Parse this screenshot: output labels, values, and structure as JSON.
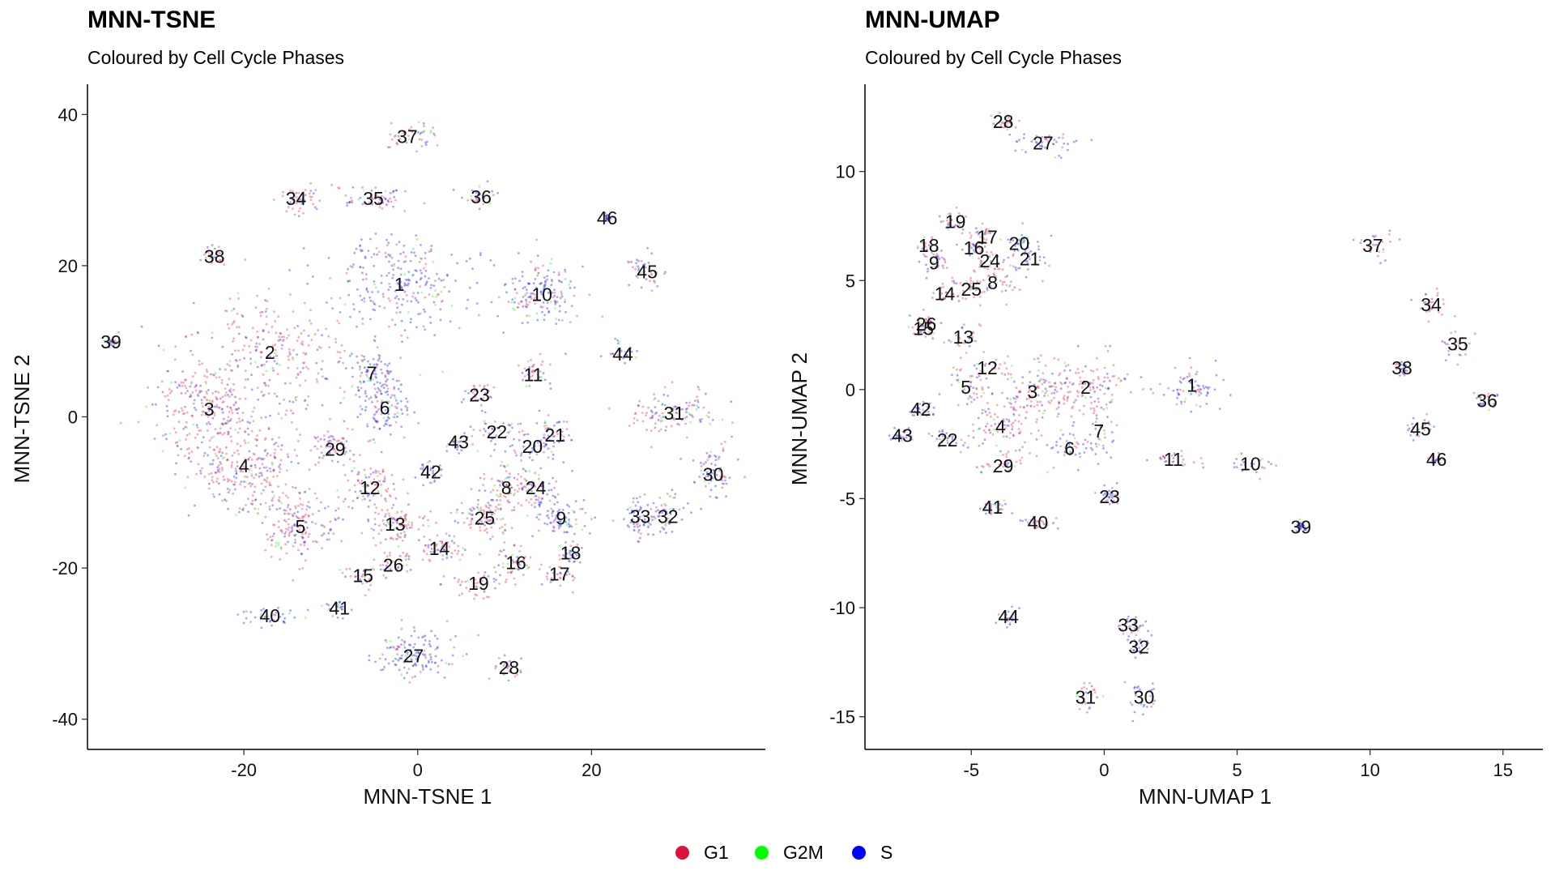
{
  "legend": {
    "items": [
      {
        "label": "G1",
        "color": "#dc143c"
      },
      {
        "label": "G2M",
        "color": "#00ff00"
      },
      {
        "label": "S",
        "color": "#0000ff"
      }
    ]
  },
  "colors": {
    "G1": "#dc143c",
    "G2M": "#00ff00",
    "S": "#0000ff"
  },
  "chart_data": [
    {
      "type": "scatter",
      "title": "MNN-TSNE",
      "subtitle": "Coloured by Cell Cycle Phases",
      "xlabel": "MNN-TSNE 1",
      "ylabel": "MNN-TSNE 2",
      "xlim": [
        -38,
        40
      ],
      "ylim": [
        -44,
        44
      ],
      "xticks": [
        -20,
        0,
        20
      ],
      "yticks": [
        -40,
        -20,
        0,
        20,
        40
      ],
      "grid": false,
      "legend_position": "bottom",
      "series": [
        {
          "name": "G1"
        },
        {
          "name": "G2M"
        },
        {
          "name": "S"
        }
      ],
      "cluster_labels": [
        {
          "label": "1",
          "x": -2.1,
          "y": 17.5,
          "phase": "S",
          "sx": 7,
          "sy": 6
        },
        {
          "label": "2",
          "x": -17.0,
          "y": 8.5,
          "phase": "G1",
          "sx": 9,
          "sy": 8
        },
        {
          "label": "3",
          "x": -24.0,
          "y": 1.0,
          "phase": "G1",
          "sx": 6,
          "sy": 7
        },
        {
          "label": "4",
          "x": -20.0,
          "y": -6.5,
          "phase": "G1",
          "sx": 6,
          "sy": 6
        },
        {
          "label": "5",
          "x": -13.5,
          "y": -14.5,
          "phase": "G1",
          "sx": 4,
          "sy": 4
        },
        {
          "label": "6",
          "x": -3.8,
          "y": 1.2,
          "phase": "S",
          "sx": 3,
          "sy": 4
        },
        {
          "label": "7",
          "x": -5.3,
          "y": 5.8,
          "phase": "S",
          "sx": 2.5,
          "sy": 3
        },
        {
          "label": "8",
          "x": 10.2,
          "y": -9.4,
          "phase": "G1",
          "sx": 3,
          "sy": 3
        },
        {
          "label": "9",
          "x": 16.5,
          "y": -13.4,
          "phase": "S",
          "sx": 3,
          "sy": 3
        },
        {
          "label": "10",
          "x": 14.3,
          "y": 16.2,
          "phase": "S",
          "sx": 4,
          "sy": 4
        },
        {
          "label": "11",
          "x": 13.3,
          "y": 5.6,
          "phase": "G1",
          "sx": 1.5,
          "sy": 2.5
        },
        {
          "label": "12",
          "x": -5.5,
          "y": -9.4,
          "phase": "G1",
          "sx": 3,
          "sy": 3
        },
        {
          "label": "13",
          "x": -2.6,
          "y": -14.2,
          "phase": "G1",
          "sx": 3,
          "sy": 3
        },
        {
          "label": "14",
          "x": 2.5,
          "y": -17.4,
          "phase": "G1",
          "sx": 3,
          "sy": 2
        },
        {
          "label": "15",
          "x": -6.3,
          "y": -21.0,
          "phase": "G1",
          "sx": 2,
          "sy": 1.5
        },
        {
          "label": "16",
          "x": 11.3,
          "y": -19.3,
          "phase": "G1",
          "sx": 2.5,
          "sy": 2
        },
        {
          "label": "17",
          "x": 16.3,
          "y": -20.8,
          "phase": "G1",
          "sx": 2,
          "sy": 1.5
        },
        {
          "label": "18",
          "x": 17.6,
          "y": -18.0,
          "phase": "S",
          "sx": 1.5,
          "sy": 2
        },
        {
          "label": "19",
          "x": 7.0,
          "y": -22.0,
          "phase": "G1",
          "sx": 3,
          "sy": 1.5
        },
        {
          "label": "20",
          "x": 13.2,
          "y": -3.9,
          "phase": "S",
          "sx": 2.5,
          "sy": 2
        },
        {
          "label": "21",
          "x": 15.8,
          "y": -2.4,
          "phase": "S",
          "sx": 2,
          "sy": 2
        },
        {
          "label": "22",
          "x": 9.1,
          "y": -2.0,
          "phase": "S",
          "sx": 2,
          "sy": 1.5
        },
        {
          "label": "23",
          "x": 7.1,
          "y": 2.9,
          "phase": "G1",
          "sx": 2,
          "sy": 1.5
        },
        {
          "label": "24",
          "x": 13.6,
          "y": -9.4,
          "phase": "G1",
          "sx": 2,
          "sy": 2
        },
        {
          "label": "25",
          "x": 7.7,
          "y": -13.4,
          "phase": "G1",
          "sx": 3,
          "sy": 2.5
        },
        {
          "label": "26",
          "x": -2.8,
          "y": -19.6,
          "phase": "G1",
          "sx": 2,
          "sy": 1.5
        },
        {
          "label": "27",
          "x": -0.5,
          "y": -31.6,
          "phase": "S",
          "sx": 4.5,
          "sy": 3
        },
        {
          "label": "28",
          "x": 10.5,
          "y": -33.2,
          "phase": "G1",
          "sx": 1.5,
          "sy": 1.5
        },
        {
          "label": "29",
          "x": -9.5,
          "y": -4.3,
          "phase": "G1",
          "sx": 2.5,
          "sy": 2.5
        },
        {
          "label": "30",
          "x": 34.0,
          "y": -7.6,
          "phase": "S",
          "sx": 2,
          "sy": 3.5
        },
        {
          "label": "31",
          "x": 29.5,
          "y": 0.5,
          "phase": "G1",
          "sx": 4.5,
          "sy": 2.5
        },
        {
          "label": "32",
          "x": 28.8,
          "y": -13.2,
          "phase": "S",
          "sx": 2,
          "sy": 2.5
        },
        {
          "label": "33",
          "x": 25.6,
          "y": -13.2,
          "phase": "S",
          "sx": 2,
          "sy": 3
        },
        {
          "label": "34",
          "x": -14.0,
          "y": 28.9,
          "phase": "G1",
          "sx": 2.5,
          "sy": 2
        },
        {
          "label": "35",
          "x": -5.1,
          "y": 28.9,
          "phase": "G1",
          "sx": 4,
          "sy": 1.5
        },
        {
          "label": "36",
          "x": 7.3,
          "y": 29.1,
          "phase": "S",
          "sx": 2,
          "sy": 1.2
        },
        {
          "label": "37",
          "x": -1.2,
          "y": 37.1,
          "phase": "G1",
          "sx": 3,
          "sy": 1.5
        },
        {
          "label": "38",
          "x": -23.4,
          "y": 21.2,
          "phase": "G1",
          "sx": 1.2,
          "sy": 1
        },
        {
          "label": "39",
          "x": -35.3,
          "y": 9.9,
          "phase": "S",
          "sx": 0.5,
          "sy": 0.5
        },
        {
          "label": "40",
          "x": -17.0,
          "y": -26.3,
          "phase": "S",
          "sx": 3,
          "sy": 1.2
        },
        {
          "label": "41",
          "x": -9.0,
          "y": -25.3,
          "phase": "S",
          "sx": 2.5,
          "sy": 1
        },
        {
          "label": "42",
          "x": 1.5,
          "y": -7.3,
          "phase": "S",
          "sx": 1.5,
          "sy": 2
        },
        {
          "label": "43",
          "x": 4.7,
          "y": -3.3,
          "phase": "S",
          "sx": 1.5,
          "sy": 1.5
        },
        {
          "label": "44",
          "x": 23.6,
          "y": 8.3,
          "phase": "S",
          "sx": 1.5,
          "sy": 1.5
        },
        {
          "label": "45",
          "x": 26.4,
          "y": 19.2,
          "phase": "S",
          "sx": 2,
          "sy": 2
        },
        {
          "label": "46",
          "x": 21.8,
          "y": 26.3,
          "phase": "S",
          "sx": 0.5,
          "sy": 0.5
        }
      ]
    },
    {
      "type": "scatter",
      "title": "MNN-UMAP",
      "subtitle": "Coloured by Cell Cycle Phases",
      "xlabel": "MNN-UMAP 1",
      "ylabel": "MNN-UMAP 2",
      "xlim": [
        -9,
        16.5
      ],
      "ylim": [
        -16.5,
        14
      ],
      "xticks": [
        -5,
        0,
        5,
        10,
        15
      ],
      "yticks": [
        -15,
        -10,
        -5,
        0,
        5,
        10
      ],
      "grid": false,
      "legend_position": "bottom",
      "series": [
        {
          "name": "G1"
        },
        {
          "name": "G2M"
        },
        {
          "name": "S"
        }
      ],
      "cluster_labels": [
        {
          "label": "1",
          "x": 3.3,
          "y": 0.2,
          "phase": "S",
          "sx": 1.2,
          "sy": 1
        },
        {
          "label": "2",
          "x": -0.7,
          "y": 0.1,
          "phase": "G1",
          "sx": 1.8,
          "sy": 1.3
        },
        {
          "label": "3",
          "x": -2.7,
          "y": -0.1,
          "phase": "G1",
          "sx": 1.5,
          "sy": 1.3
        },
        {
          "label": "4",
          "x": -3.9,
          "y": -1.7,
          "phase": "G1",
          "sx": 1.3,
          "sy": 1.2
        },
        {
          "label": "5",
          "x": -5.2,
          "y": 0.1,
          "phase": "G1",
          "sx": 0.8,
          "sy": 0.8
        },
        {
          "label": "6",
          "x": -1.3,
          "y": -2.7,
          "phase": "S",
          "sx": 1.2,
          "sy": 0.8
        },
        {
          "label": "7",
          "x": -0.2,
          "y": -1.9,
          "phase": "S",
          "sx": 0.6,
          "sy": 0.8
        },
        {
          "label": "8",
          "x": -4.2,
          "y": 4.9,
          "phase": "G1",
          "sx": 1,
          "sy": 0.8
        },
        {
          "label": "9",
          "x": -6.4,
          "y": 5.8,
          "phase": "G1",
          "sx": 0.6,
          "sy": 0.6
        },
        {
          "label": "10",
          "x": 5.5,
          "y": -3.4,
          "phase": "S",
          "sx": 0.9,
          "sy": 0.5
        },
        {
          "label": "11",
          "x": 2.6,
          "y": -3.2,
          "phase": "G1",
          "sx": 1,
          "sy": 0.3
        },
        {
          "label": "12",
          "x": -4.4,
          "y": 1.0,
          "phase": "G1",
          "sx": 0.6,
          "sy": 0.6
        },
        {
          "label": "13",
          "x": -5.3,
          "y": 2.4,
          "phase": "G1",
          "sx": 0.6,
          "sy": 0.6
        },
        {
          "label": "14",
          "x": -6.0,
          "y": 4.4,
          "phase": "G1",
          "sx": 0.6,
          "sy": 0.5
        },
        {
          "label": "15",
          "x": -6.8,
          "y": 2.8,
          "phase": "G1",
          "sx": 0.4,
          "sy": 0.4
        },
        {
          "label": "16",
          "x": -4.9,
          "y": 6.5,
          "phase": "G1",
          "sx": 0.6,
          "sy": 0.5
        },
        {
          "label": "17",
          "x": -4.4,
          "y": 7.0,
          "phase": "G1",
          "sx": 0.5,
          "sy": 0.5
        },
        {
          "label": "18",
          "x": -6.6,
          "y": 6.6,
          "phase": "G1",
          "sx": 0.4,
          "sy": 0.5
        },
        {
          "label": "19",
          "x": -5.6,
          "y": 7.7,
          "phase": "G1",
          "sx": 0.6,
          "sy": 0.5
        },
        {
          "label": "20",
          "x": -3.2,
          "y": 6.7,
          "phase": "S",
          "sx": 0.6,
          "sy": 0.6
        },
        {
          "label": "21",
          "x": -2.8,
          "y": 6.0,
          "phase": "S",
          "sx": 0.6,
          "sy": 0.6
        },
        {
          "label": "22",
          "x": -5.9,
          "y": -2.3,
          "phase": "S",
          "sx": 0.5,
          "sy": 0.4
        },
        {
          "label": "23",
          "x": 0.2,
          "y": -4.9,
          "phase": "S",
          "sx": 0.3,
          "sy": 0.5
        },
        {
          "label": "24",
          "x": -4.3,
          "y": 5.9,
          "phase": "G1",
          "sx": 0.6,
          "sy": 0.5
        },
        {
          "label": "25",
          "x": -5.0,
          "y": 4.6,
          "phase": "G1",
          "sx": 0.6,
          "sy": 0.5
        },
        {
          "label": "26",
          "x": -6.7,
          "y": 3.0,
          "phase": "G1",
          "sx": 0.4,
          "sy": 0.4
        },
        {
          "label": "27",
          "x": -2.3,
          "y": 11.3,
          "phase": "S",
          "sx": 1.3,
          "sy": 0.6
        },
        {
          "label": "28",
          "x": -3.8,
          "y": 12.3,
          "phase": "G1",
          "sx": 0.6,
          "sy": 0.4
        },
        {
          "label": "29",
          "x": -3.8,
          "y": -3.5,
          "phase": "G1",
          "sx": 0.8,
          "sy": 0.3
        },
        {
          "label": "30",
          "x": 1.5,
          "y": -14.1,
          "phase": "S",
          "sx": 0.6,
          "sy": 0.8
        },
        {
          "label": "31",
          "x": -0.7,
          "y": -14.1,
          "phase": "G1",
          "sx": 0.6,
          "sy": 0.8
        },
        {
          "label": "32",
          "x": 1.3,
          "y": -11.8,
          "phase": "S",
          "sx": 0.5,
          "sy": 0.5
        },
        {
          "label": "33",
          "x": 0.9,
          "y": -10.8,
          "phase": "S",
          "sx": 0.6,
          "sy": 0.4
        },
        {
          "label": "34",
          "x": 12.3,
          "y": 3.9,
          "phase": "G1",
          "sx": 0.5,
          "sy": 0.6
        },
        {
          "label": "35",
          "x": 13.3,
          "y": 2.1,
          "phase": "G1",
          "sx": 0.5,
          "sy": 0.8
        },
        {
          "label": "36",
          "x": 14.4,
          "y": -0.5,
          "phase": "S",
          "sx": 0.5,
          "sy": 0.4
        },
        {
          "label": "37",
          "x": 10.1,
          "y": 6.6,
          "phase": "G1",
          "sx": 0.8,
          "sy": 0.6
        },
        {
          "label": "38",
          "x": 11.2,
          "y": 1.0,
          "phase": "S",
          "sx": 0.3,
          "sy": 0.4
        },
        {
          "label": "39",
          "x": 7.4,
          "y": -6.3,
          "phase": "S",
          "sx": 0.2,
          "sy": 0.2
        },
        {
          "label": "40",
          "x": -2.5,
          "y": -6.1,
          "phase": "G1",
          "sx": 0.8,
          "sy": 0.3
        },
        {
          "label": "41",
          "x": -4.2,
          "y": -5.4,
          "phase": "S",
          "sx": 0.4,
          "sy": 0.3
        },
        {
          "label": "42",
          "x": -6.9,
          "y": -0.9,
          "phase": "S",
          "sx": 0.4,
          "sy": 0.4
        },
        {
          "label": "43",
          "x": -7.6,
          "y": -2.1,
          "phase": "S",
          "sx": 0.4,
          "sy": 0.3
        },
        {
          "label": "44",
          "x": -3.6,
          "y": -10.4,
          "phase": "S",
          "sx": 0.5,
          "sy": 0.5
        },
        {
          "label": "45",
          "x": 11.9,
          "y": -1.8,
          "phase": "S",
          "sx": 0.4,
          "sy": 0.5
        },
        {
          "label": "46",
          "x": 12.5,
          "y": -3.2,
          "phase": "S",
          "sx": 0.2,
          "sy": 0.2
        }
      ]
    }
  ]
}
